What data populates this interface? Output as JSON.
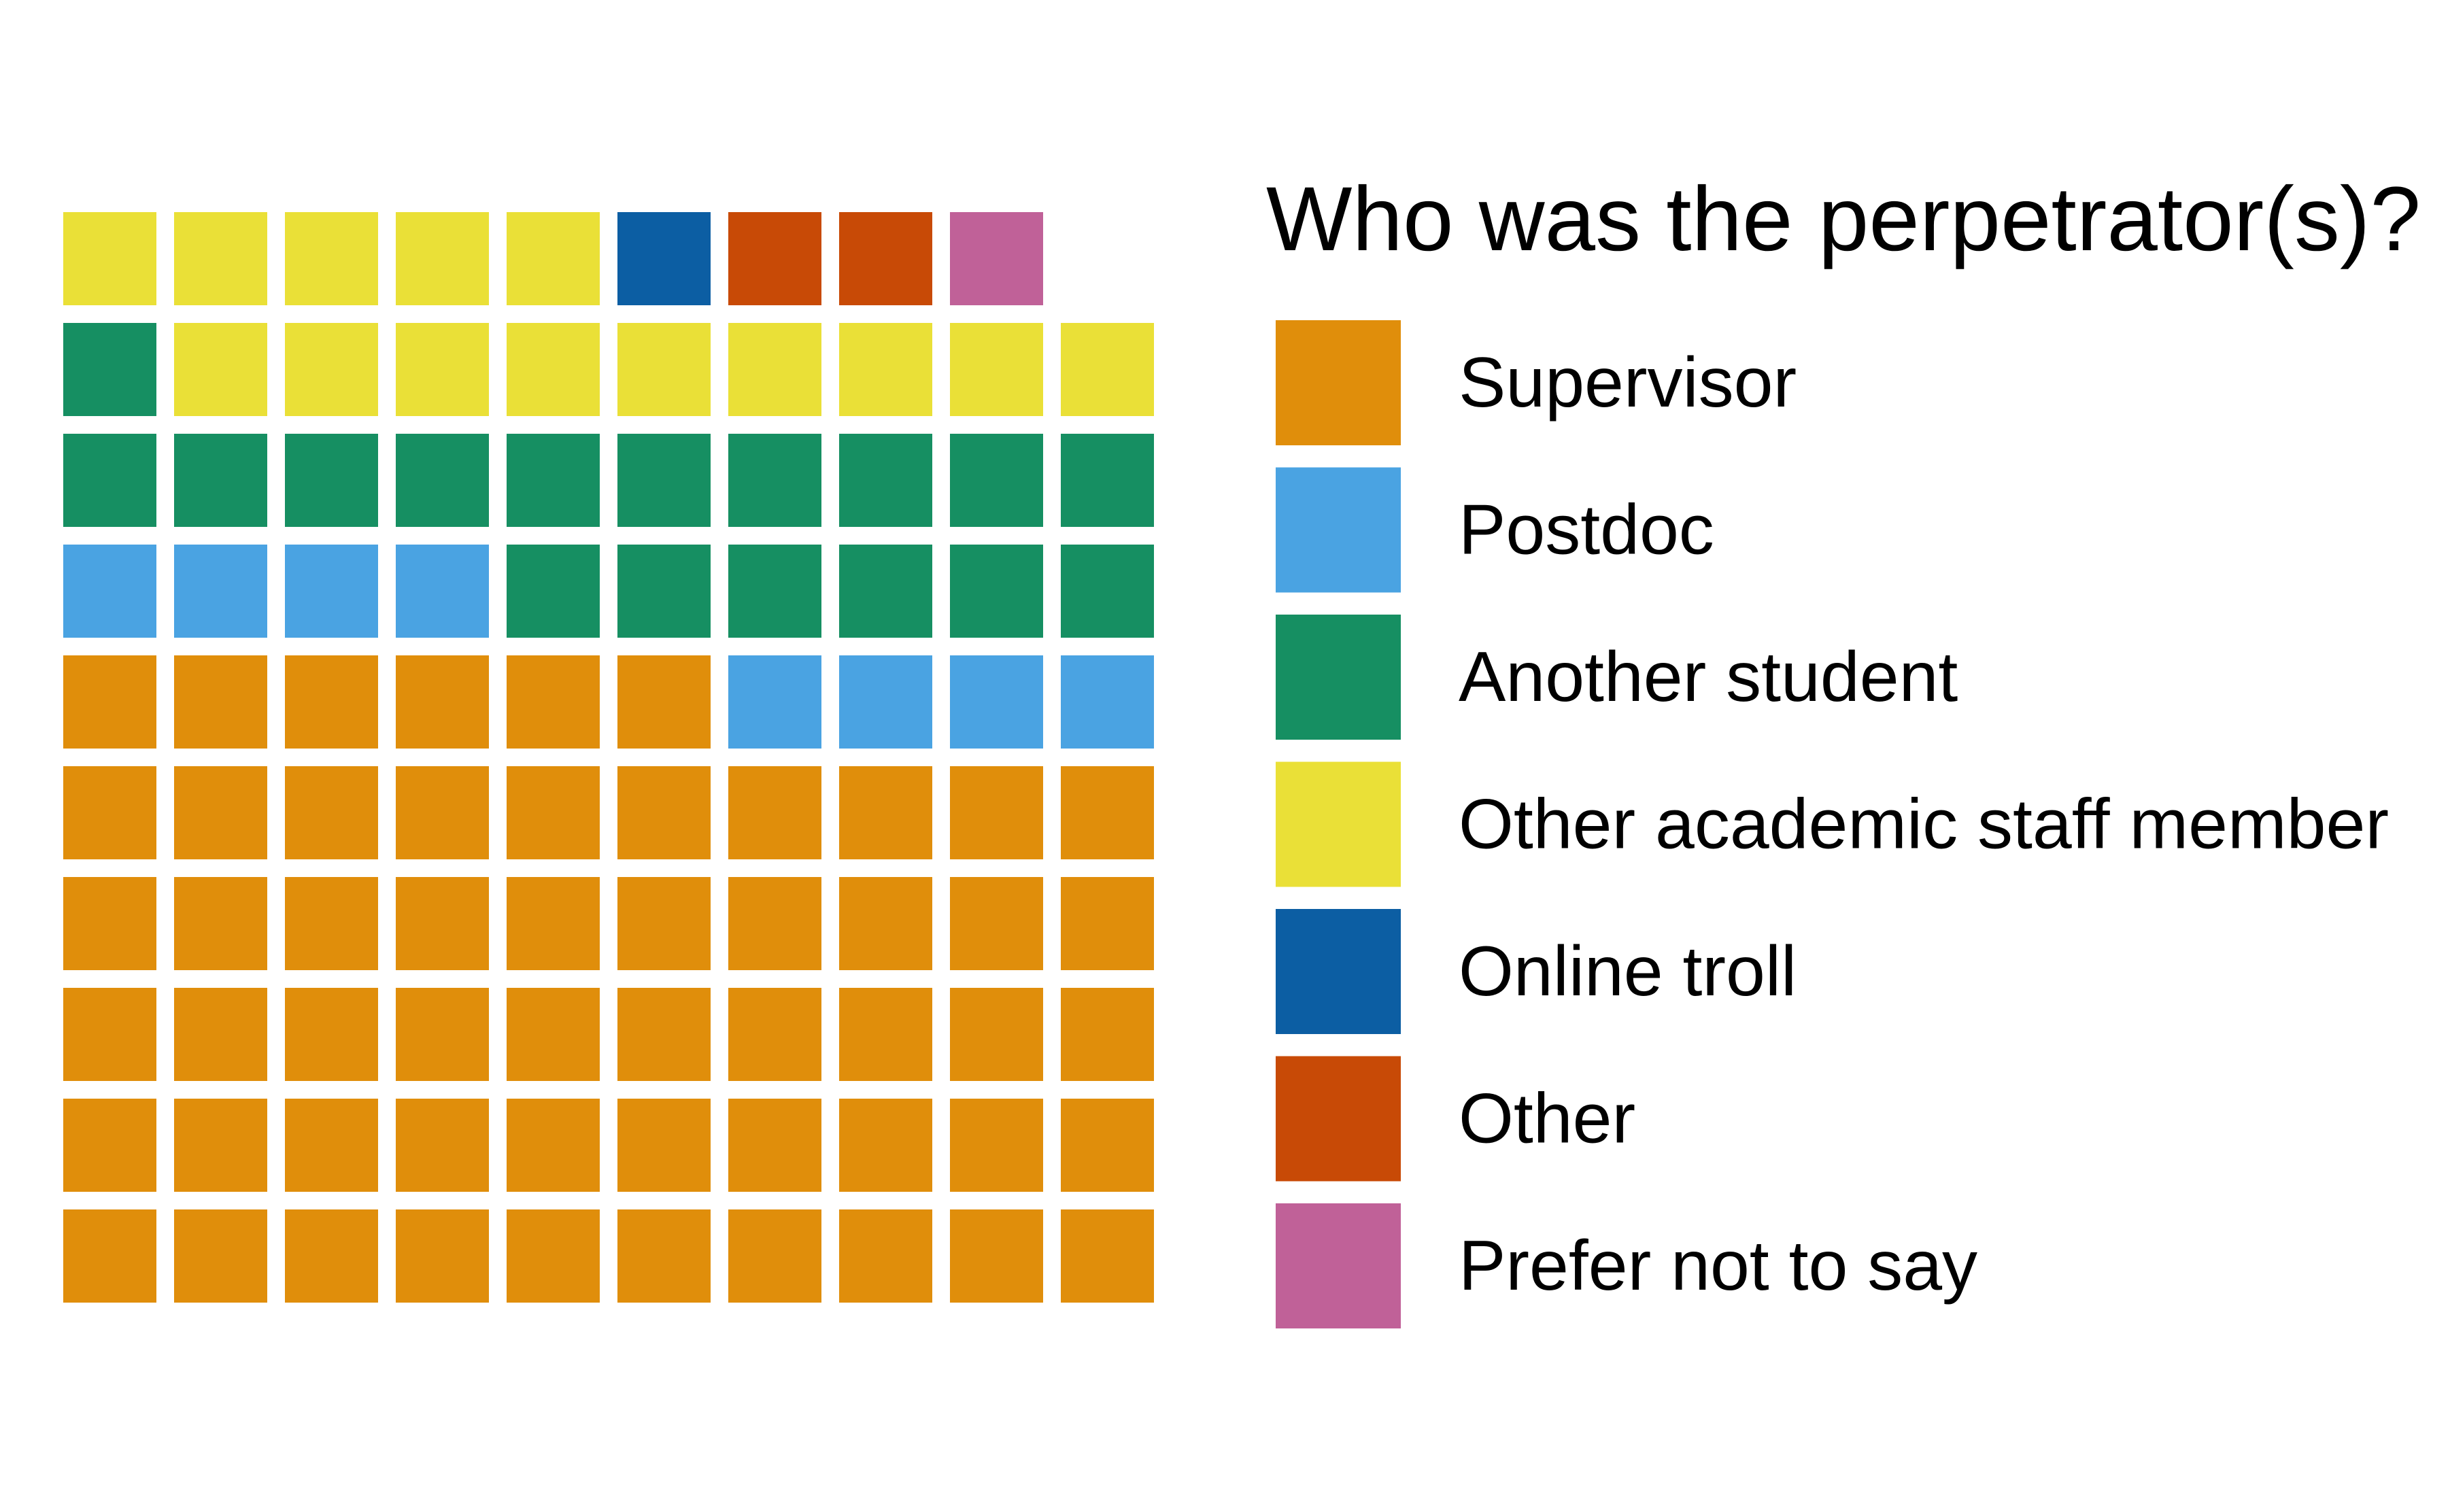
{
  "chart_data": {
    "type": "waffle",
    "legend_title": "Who was the perpetrator(s)?",
    "legend_position": "right",
    "grid_columns": 10,
    "fill_order": "row-wise from bottom-left",
    "grid": false,
    "categories": [
      {
        "label": "Supervisor",
        "count": 56,
        "color": "#E08E0B"
      },
      {
        "label": "Postdoc",
        "count": 8,
        "color": "#4AA3E2"
      },
      {
        "label": "Another student",
        "count": 17,
        "color": "#168F62"
      },
      {
        "label": "Other academic staff member",
        "count": 14,
        "color": "#EAE037"
      },
      {
        "label": "Online troll",
        "count": 1,
        "color": "#0C5EA3"
      },
      {
        "label": "Other",
        "count": 2,
        "color": "#C84A06"
      },
      {
        "label": "Prefer not to say",
        "count": 1,
        "color": "#C06198"
      }
    ]
  }
}
